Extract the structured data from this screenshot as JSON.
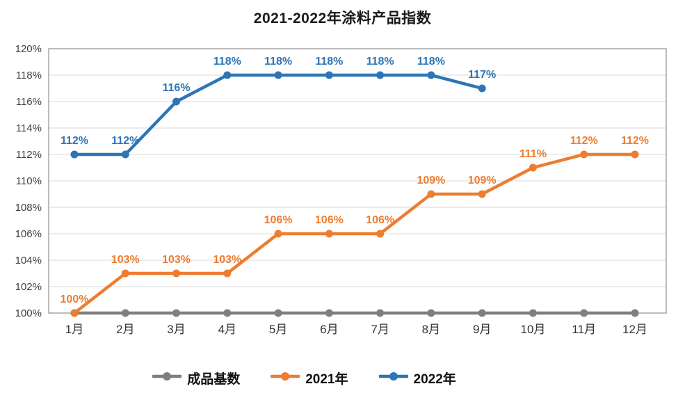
{
  "title": "2021-2022年涂料产品指数",
  "chart_data": {
    "type": "line",
    "title": "2021-2022年涂料产品指数",
    "categories": [
      "1月",
      "2月",
      "3月",
      "4月",
      "5月",
      "6月",
      "7月",
      "8月",
      "9月",
      "10月",
      "11月",
      "12月"
    ],
    "series": [
      {
        "id": "base",
        "name": "成品基数",
        "color": "#7F7F7F",
        "show_labels": false,
        "values": [
          100,
          100,
          100,
          100,
          100,
          100,
          100,
          100,
          100,
          100,
          100,
          100
        ]
      },
      {
        "id": "y2021",
        "name": "2021年",
        "color": "#ED7D31",
        "show_labels": true,
        "values": [
          100,
          103,
          103,
          103,
          106,
          106,
          106,
          109,
          109,
          111,
          112,
          112
        ]
      },
      {
        "id": "y2022",
        "name": "2022年",
        "color": "#2E75B6",
        "show_labels": true,
        "values": [
          112,
          112,
          116,
          118,
          118,
          118,
          118,
          118,
          117
        ]
      }
    ],
    "ylim": [
      100,
      120
    ],
    "ytick_step": 2,
    "tick_suffix": "%",
    "label_suffix": "%",
    "grid": true,
    "gridline_color": "#D9D9D9",
    "border_color": "#A6A6A6",
    "legend_position": "bottom"
  }
}
